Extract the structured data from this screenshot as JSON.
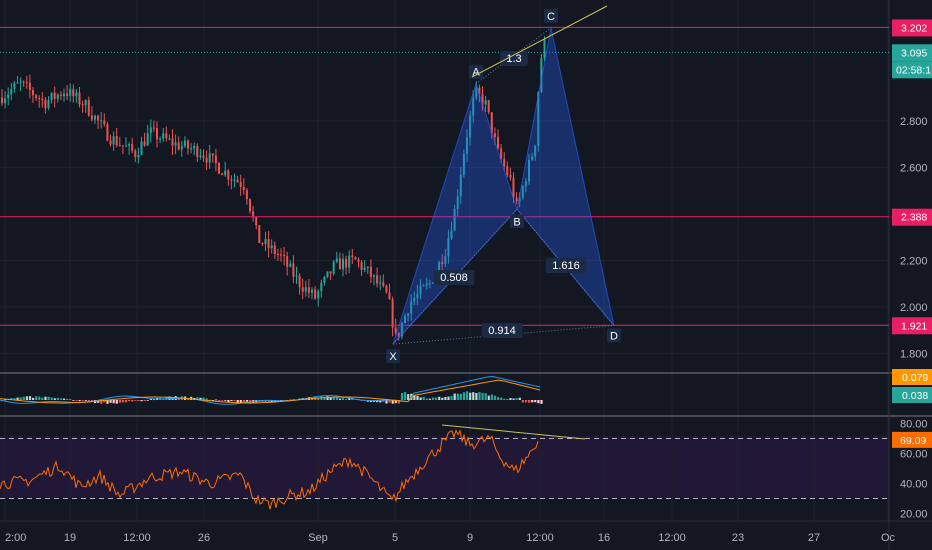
{
  "chart_data": {
    "type": "candlestick",
    "price_axis": {
      "ticks": [
        "2.800",
        "2.600",
        "2.200",
        "2.000",
        "1.800"
      ],
      "range": [
        1.72,
        3.32
      ]
    },
    "time_axis": {
      "ticks": [
        "2:00",
        "19",
        "12:00",
        "26",
        "Sep",
        "5",
        "9",
        "12:00",
        "16",
        "12:00",
        "23",
        "27",
        "Oc"
      ]
    },
    "horizontal_levels": [
      {
        "value": 3.202,
        "label": "3.202",
        "color": "#e91e63"
      },
      {
        "value": 2.388,
        "label": "2.388",
        "color": "#e91e63"
      },
      {
        "value": 1.921,
        "label": "1.921",
        "color": "#e91e63"
      }
    ],
    "last_price": {
      "value": 3.095,
      "label": "3.095",
      "color": "#26a69a"
    },
    "countdown": "02:58:1",
    "pattern": {
      "name": "XABCD harmonic",
      "points": [
        {
          "label": "X",
          "time": "5",
          "value": 1.84
        },
        {
          "label": "A",
          "time": "9",
          "value": 2.96
        },
        {
          "label": "B",
          "time": "11",
          "value": 2.42
        },
        {
          "label": "C",
          "time": "12:00",
          "value": 3.2
        },
        {
          "label": "D",
          "time": "16",
          "value": 1.92
        }
      ],
      "ratios": [
        {
          "text": "0.508",
          "between": "XB"
        },
        {
          "text": "1.3",
          "between": "AC"
        },
        {
          "text": "1.616",
          "between": "BD"
        },
        {
          "text": "0.914",
          "between": "XD"
        }
      ]
    },
    "macd_panel": {
      "labels": [
        "0.079",
        "0.038"
      ],
      "label_colors": [
        "#ff9800",
        "#26a69a"
      ]
    },
    "rsi_panel": {
      "ticks": [
        "80.00",
        "60.00",
        "40.00",
        "20.00"
      ],
      "range": [
        15,
        85
      ],
      "upper_band": 70,
      "lower_band": 30,
      "last_value": "69.09",
      "last_value_color": "#ff6d00"
    }
  }
}
